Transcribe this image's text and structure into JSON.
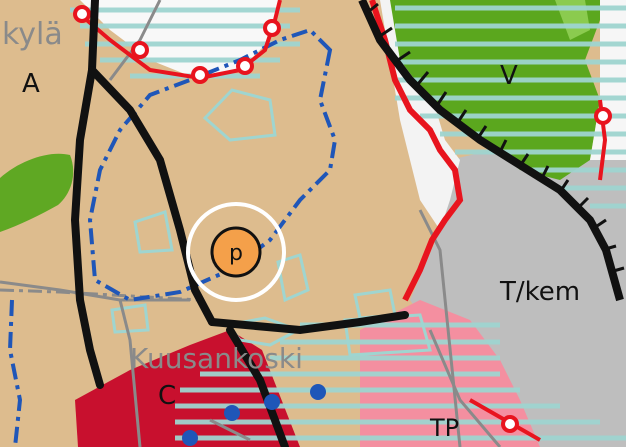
{
  "map": {
    "labels": {
      "village_fragment": "kylä",
      "zone_a": "A",
      "zone_v": "V",
      "zone_tkem": "T/kem",
      "place_name": "Kuusankoski",
      "zone_c": "C",
      "zone_tp": "TP",
      "parking_symbol": "p"
    },
    "colors": {
      "residential_a": "#DDBC8E",
      "green_strip": "#5FA823",
      "forest_v": "#5BA71E",
      "industrial_tkem": "#BEBEBE",
      "commercial_c": "#C8102E",
      "tp_zone": "#F48FA0",
      "road_black": "#111111",
      "blue_boundary": "#1F56B8",
      "cyan_hatch": "#9FD5D0",
      "red_line": "#E8141E",
      "gray_line": "#8A8A8A",
      "parking_fill": "#F4A04A",
      "highlight_ring": "#FFFFFF"
    }
  }
}
